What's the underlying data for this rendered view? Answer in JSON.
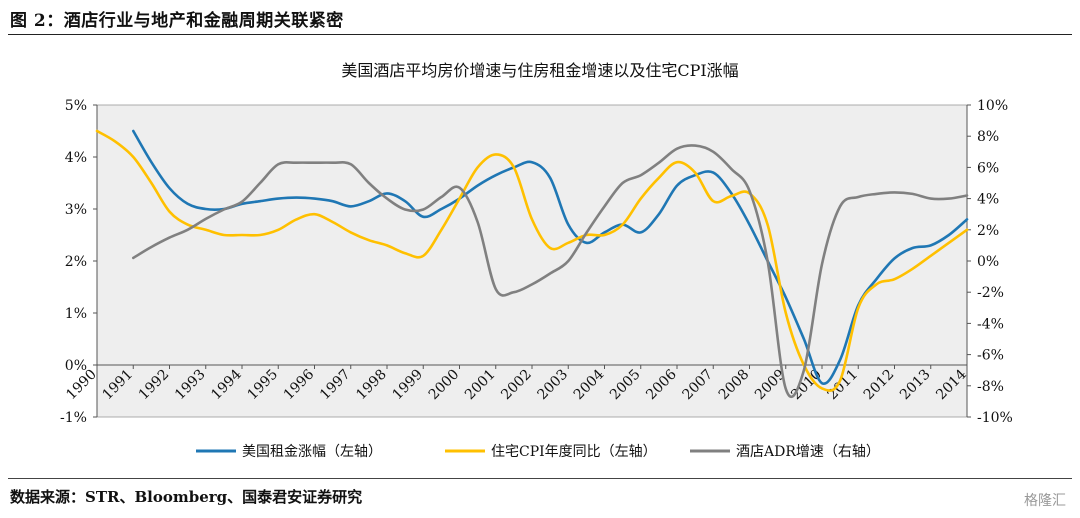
{
  "figure_caption": "图 2：酒店行业与地产和金融周期关联紧密",
  "source_note": "数据来源：STR、Bloomberg、国泰君安证券研究",
  "watermark": "格隆汇",
  "chart_data": {
    "type": "line",
    "title": "美国酒店平均房价增速与住房租金增速以及住宅CPI涨幅",
    "x_categories": [
      "1990",
      "1991",
      "1992",
      "1993",
      "1994",
      "1995",
      "1996",
      "1997",
      "1998",
      "1999",
      "2000",
      "2001",
      "2002",
      "2003",
      "2004",
      "2005",
      "2006",
      "2007",
      "2008",
      "2009",
      "2010",
      "2011",
      "2012",
      "2013",
      "2014"
    ],
    "y_left": {
      "min": -1,
      "max": 5,
      "step": 1,
      "ticks": [
        "-1%",
        "0%",
        "1%",
        "2%",
        "3%",
        "4%",
        "5%"
      ]
    },
    "y_right": {
      "min": -10,
      "max": 10,
      "step": 2,
      "ticks": [
        "-10%",
        "-8%",
        "-6%",
        "-4%",
        "-2%",
        "0%",
        "2%",
        "4%",
        "6%",
        "8%",
        "10%"
      ]
    },
    "grid": false,
    "plot_background": "#eeeeee",
    "legend_position": "bottom",
    "series": [
      {
        "name": "美国租金涨幅（左轴）",
        "axis": "left",
        "color": "#1f77b4",
        "points": [
          [
            1991.0,
            4.5
          ],
          [
            1991.5,
            3.9
          ],
          [
            1992.0,
            3.4
          ],
          [
            1992.5,
            3.1
          ],
          [
            1993.0,
            3.0
          ],
          [
            1993.5,
            3.0
          ],
          [
            1994.0,
            3.1
          ],
          [
            1994.5,
            3.15
          ],
          [
            1995.0,
            3.2
          ],
          [
            1995.5,
            3.22
          ],
          [
            1996.0,
            3.2
          ],
          [
            1996.5,
            3.15
          ],
          [
            1997.0,
            3.05
          ],
          [
            1997.5,
            3.15
          ],
          [
            1998.0,
            3.3
          ],
          [
            1998.5,
            3.15
          ],
          [
            1999.0,
            2.85
          ],
          [
            1999.5,
            3.0
          ],
          [
            2000.0,
            3.2
          ],
          [
            2000.5,
            3.45
          ],
          [
            2001.0,
            3.65
          ],
          [
            2001.5,
            3.8
          ],
          [
            2002.0,
            3.9
          ],
          [
            2002.5,
            3.6
          ],
          [
            2003.0,
            2.7
          ],
          [
            2003.5,
            2.35
          ],
          [
            2004.0,
            2.55
          ],
          [
            2004.5,
            2.7
          ],
          [
            2005.0,
            2.55
          ],
          [
            2005.5,
            2.9
          ],
          [
            2006.0,
            3.45
          ],
          [
            2006.5,
            3.65
          ],
          [
            2007.0,
            3.7
          ],
          [
            2007.5,
            3.3
          ],
          [
            2008.0,
            2.7
          ],
          [
            2008.5,
            2.0
          ],
          [
            2009.0,
            1.3
          ],
          [
            2009.5,
            0.5
          ],
          [
            2010.0,
            -0.35
          ],
          [
            2010.5,
            0.1
          ],
          [
            2011.0,
            1.15
          ],
          [
            2011.5,
            1.65
          ],
          [
            2012.0,
            2.05
          ],
          [
            2012.5,
            2.25
          ],
          [
            2013.0,
            2.3
          ],
          [
            2013.5,
            2.5
          ],
          [
            2014.0,
            2.8
          ]
        ]
      },
      {
        "name": "住宅CPI年度同比（左轴）",
        "axis": "left",
        "color": "#ffc000",
        "points": [
          [
            1990.0,
            4.5
          ],
          [
            1990.5,
            4.3
          ],
          [
            1991.0,
            4.0
          ],
          [
            1991.5,
            3.5
          ],
          [
            1992.0,
            2.95
          ],
          [
            1992.5,
            2.7
          ],
          [
            1993.0,
            2.6
          ],
          [
            1993.5,
            2.5
          ],
          [
            1994.0,
            2.5
          ],
          [
            1994.5,
            2.5
          ],
          [
            1995.0,
            2.6
          ],
          [
            1995.5,
            2.8
          ],
          [
            1996.0,
            2.9
          ],
          [
            1996.5,
            2.75
          ],
          [
            1997.0,
            2.55
          ],
          [
            1997.5,
            2.4
          ],
          [
            1998.0,
            2.3
          ],
          [
            1998.5,
            2.15
          ],
          [
            1999.0,
            2.1
          ],
          [
            1999.5,
            2.6
          ],
          [
            2000.0,
            3.2
          ],
          [
            2000.5,
            3.8
          ],
          [
            2001.0,
            4.05
          ],
          [
            2001.5,
            3.8
          ],
          [
            2002.0,
            2.8
          ],
          [
            2002.5,
            2.25
          ],
          [
            2003.0,
            2.35
          ],
          [
            2003.5,
            2.5
          ],
          [
            2004.0,
            2.5
          ],
          [
            2004.5,
            2.7
          ],
          [
            2005.0,
            3.2
          ],
          [
            2005.5,
            3.6
          ],
          [
            2006.0,
            3.9
          ],
          [
            2006.5,
            3.7
          ],
          [
            2007.0,
            3.15
          ],
          [
            2007.5,
            3.25
          ],
          [
            2008.0,
            3.3
          ],
          [
            2008.5,
            2.7
          ],
          [
            2009.0,
            1.0
          ],
          [
            2009.5,
            0.0
          ],
          [
            2010.0,
            -0.45
          ],
          [
            2010.5,
            -0.3
          ],
          [
            2011.0,
            1.1
          ],
          [
            2011.5,
            1.55
          ],
          [
            2012.0,
            1.65
          ],
          [
            2012.5,
            1.85
          ],
          [
            2013.0,
            2.1
          ],
          [
            2013.5,
            2.35
          ],
          [
            2014.0,
            2.6
          ]
        ]
      },
      {
        "name": "酒店ADR增速（右轴）",
        "axis": "right",
        "color": "#808080",
        "points": [
          [
            1991.0,
            0.2
          ],
          [
            1991.5,
            0.9
          ],
          [
            1992.0,
            1.5
          ],
          [
            1992.5,
            2.0
          ],
          [
            1993.0,
            2.7
          ],
          [
            1993.5,
            3.3
          ],
          [
            1994.0,
            3.8
          ],
          [
            1994.5,
            5.0
          ],
          [
            1995.0,
            6.2
          ],
          [
            1995.5,
            6.3
          ],
          [
            1996.0,
            6.3
          ],
          [
            1996.5,
            6.3
          ],
          [
            1997.0,
            6.2
          ],
          [
            1997.5,
            5.0
          ],
          [
            1998.0,
            4.0
          ],
          [
            1998.5,
            3.3
          ],
          [
            1999.0,
            3.3
          ],
          [
            1999.5,
            4.1
          ],
          [
            2000.0,
            4.7
          ],
          [
            2000.5,
            2.5
          ],
          [
            2001.0,
            -1.8
          ],
          [
            2001.5,
            -2.0
          ],
          [
            2002.0,
            -1.5
          ],
          [
            2002.5,
            -0.8
          ],
          [
            2003.0,
            0.0
          ],
          [
            2003.5,
            1.8
          ],
          [
            2004.0,
            3.5
          ],
          [
            2004.5,
            5.0
          ],
          [
            2005.0,
            5.5
          ],
          [
            2005.5,
            6.3
          ],
          [
            2006.0,
            7.2
          ],
          [
            2006.5,
            7.4
          ],
          [
            2007.0,
            7.0
          ],
          [
            2007.5,
            5.9
          ],
          [
            2008.0,
            4.5
          ],
          [
            2008.5,
            0.0
          ],
          [
            2009.0,
            -8.2
          ],
          [
            2009.5,
            -7.0
          ],
          [
            2010.0,
            -0.2
          ],
          [
            2010.5,
            3.5
          ],
          [
            2011.0,
            4.1
          ],
          [
            2011.5,
            4.3
          ],
          [
            2012.0,
            4.4
          ],
          [
            2012.5,
            4.3
          ],
          [
            2013.0,
            4.0
          ],
          [
            2013.5,
            4.0
          ],
          [
            2014.0,
            4.2
          ]
        ]
      }
    ]
  }
}
